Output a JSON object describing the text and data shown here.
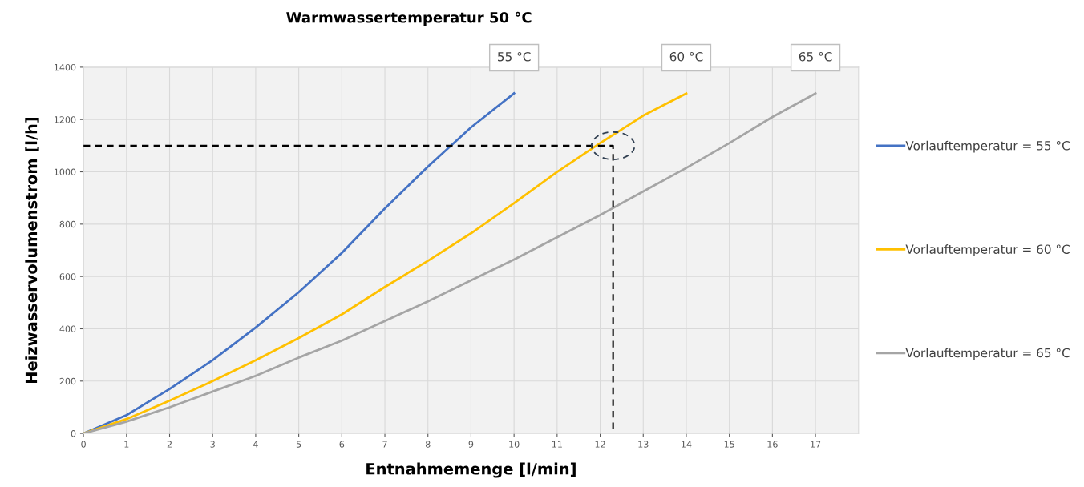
{
  "chart_data": {
    "type": "line",
    "title": "Warmwassertemperatur 50 °C",
    "xlabel": "Entnahmemenge [l/min]",
    "ylabel": "Heizwasservolumenstrom [l/h]",
    "xlim": [
      0,
      18
    ],
    "xticks": [
      0,
      1,
      2,
      3,
      4,
      5,
      6,
      7,
      8,
      9,
      10,
      11,
      12,
      13,
      14,
      15,
      16,
      17
    ],
    "ylim": [
      0,
      1400
    ],
    "yticks": [
      0,
      200,
      400,
      600,
      800,
      1000,
      1200,
      1400
    ],
    "grid": true,
    "legend": "right",
    "line_style": "solid",
    "marker": "none",
    "series": [
      {
        "name": "Vorlauftemperatur = 55 °C",
        "color": "#4472c4",
        "x": [
          0,
          1,
          2,
          3,
          4,
          5,
          6,
          7,
          8,
          9,
          10
        ],
        "values": [
          0,
          70,
          170,
          280,
          405,
          540,
          690,
          860,
          1020,
          1170,
          1300
        ]
      },
      {
        "name": "Vorlauftemperatur = 60 °C",
        "color": "#ffc000",
        "x": [
          0,
          1,
          2,
          3,
          4,
          5,
          6,
          7,
          8,
          9,
          10,
          11,
          12,
          13,
          14
        ],
        "values": [
          0,
          55,
          125,
          200,
          280,
          365,
          455,
          560,
          660,
          765,
          880,
          1000,
          1110,
          1215,
          1300
        ]
      },
      {
        "name": "Vorlauftemperatur = 65 °C",
        "color": "#a5a5a5",
        "x": [
          0,
          1,
          2,
          3,
          4,
          5,
          6,
          7,
          8,
          9,
          10,
          11,
          12,
          13,
          14,
          15,
          16,
          17
        ],
        "values": [
          0,
          45,
          100,
          160,
          220,
          290,
          355,
          430,
          505,
          585,
          665,
          750,
          835,
          925,
          1015,
          1110,
          1210,
          1300
        ]
      },
      {
        "color": "#000000",
        "line_style": "dashed",
        "x": [
          0,
          12.3,
          12.3
        ],
        "values": [
          1100,
          1100,
          0
        ]
      }
    ],
    "annotations": [
      {
        "text": "55 °C",
        "x": 10,
        "y": 1300
      },
      {
        "text": "60 °C",
        "x": 14,
        "y": 1300
      },
      {
        "text": "65 °C",
        "x": 17,
        "y": 1300
      }
    ]
  }
}
